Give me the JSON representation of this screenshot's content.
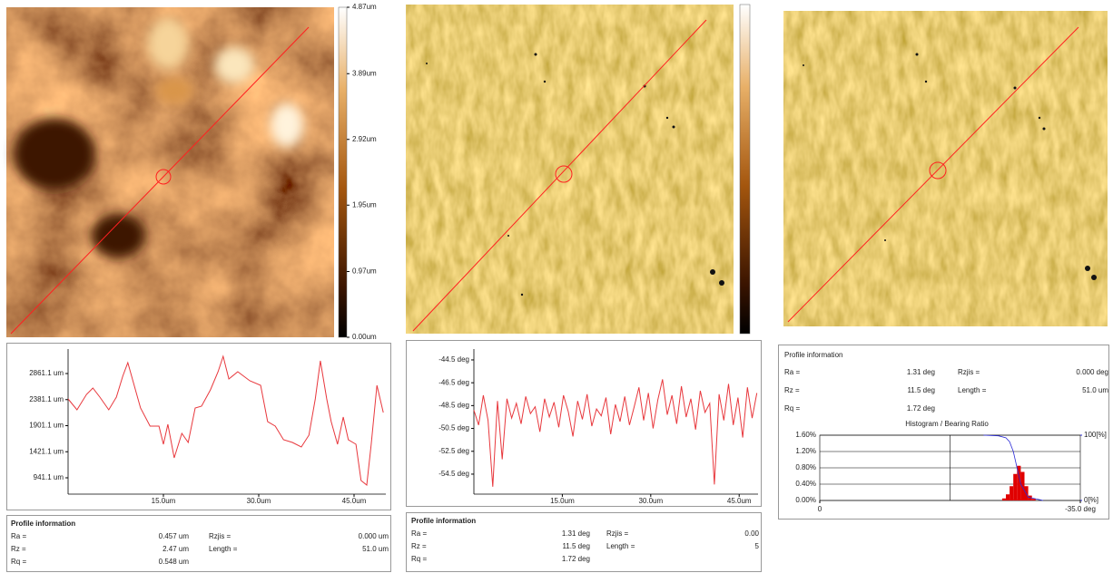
{
  "chart_data": [
    {
      "type": "line",
      "color": "#e8383d",
      "x": [
        0,
        1.4,
        2.9,
        3.9,
        5,
        6.4,
        7.6,
        8.6,
        9.4,
        10.4,
        11.4,
        12.9,
        14.3,
        15,
        15.7,
        16.7,
        17.9,
        18.9,
        20,
        21,
        22.4,
        23.6,
        24.4,
        25.3,
        26.7,
        28.6,
        30.3,
        31.4,
        32.6,
        33.9,
        35.3,
        36.7,
        37.9,
        38.9,
        39.7,
        40.7,
        41.4,
        42.4,
        43.3,
        44.1,
        45.3,
        46.1,
        47,
        47.7,
        48.6,
        49.6
      ],
      "values": [
        2393.7,
        2193.3,
        2477.1,
        2594,
        2427.1,
        2193.3,
        2427.1,
        2811.1,
        3061.5,
        2644.1,
        2226.7,
        1892.8,
        1892.8,
        1558.9,
        1926.1,
        1308.4,
        1759.2,
        1592.2,
        2226.7,
        2260.1,
        2560.6,
        2894.5,
        3178.4,
        2761,
        2894.5,
        2727.6,
        2644.1,
        1976.3,
        1892.8,
        1642.3,
        1592.2,
        1508.8,
        1725.8,
        2393.7,
        3094.9,
        2393.7,
        1976.3,
        1558.9,
        2059.7,
        1642.3,
        1558.9,
        891,
        807.5,
        1558.9,
        2644.1,
        2143.2
      ],
      "xlim": [
        0,
        50
      ],
      "ylim": [
        640.6,
        3312
      ],
      "xticks": [
        {
          "value": 15,
          "label": "15.0um"
        },
        {
          "value": 30,
          "label": "30.0um"
        },
        {
          "value": 45,
          "label": "45.0um"
        }
      ],
      "yticks": [
        {
          "value": 2861.1,
          "label": "2861.1 um"
        },
        {
          "value": 2381.1,
          "label": "2381.1 um"
        },
        {
          "value": 1901.1,
          "label": "1901.1 um"
        },
        {
          "value": 1421.1,
          "label": "1421.1 um"
        },
        {
          "value": 941.1,
          "label": "941.1 um"
        }
      ]
    },
    {
      "type": "line",
      "color": "#e8383d",
      "x": [
        0,
        0.8,
        1.6,
        2.4,
        3.2,
        4,
        4.8,
        5.6,
        6.4,
        7.2,
        8,
        8.8,
        9.6,
        10.4,
        11.2,
        12,
        12.8,
        13.6,
        14.4,
        15.2,
        16,
        16.8,
        17.6,
        18.4,
        19.2,
        20,
        20.8,
        21.6,
        22.4,
        23.2,
        24,
        24.8,
        25.6,
        26.4,
        27.2,
        28,
        28.8,
        29.6,
        30.4,
        31.2,
        32,
        32.8,
        33.6,
        34.4,
        35.2,
        36,
        36.8,
        37.6,
        38.4,
        39.2,
        40,
        40.8,
        41.6,
        42.4,
        43.2,
        44,
        44.8,
        45.6,
        46.4,
        47.2,
        48
      ],
      "values": [
        -48.9,
        -50.2,
        -47.6,
        -49.8,
        -55.6,
        -48.1,
        -53.2,
        -47.9,
        -49.6,
        -48.3,
        -50.1,
        -47.7,
        -49.2,
        -48.6,
        -50.8,
        -47.9,
        -49.5,
        -48.2,
        -50.4,
        -47.6,
        -49.0,
        -51.2,
        -48.1,
        -49.7,
        -47.5,
        -50.3,
        -48.8,
        -49.4,
        -47.8,
        -51.0,
        -48.4,
        -49.9,
        -47.7,
        -50.2,
        -48.6,
        -46.9,
        -49.8,
        -47.4,
        -50.5,
        -48.0,
        -46.2,
        -49.3,
        -47.6,
        -50.1,
        -46.8,
        -49.5,
        -47.9,
        -50.6,
        -47.2,
        -49.1,
        -48.3,
        -55.4,
        -47.5,
        -49.8,
        -46.6,
        -50.2,
        -47.8,
        -51.3,
        -46.9,
        -49.6,
        -47.4
      ],
      "xlim": [
        0,
        48.2
      ],
      "ylim": [
        -56.25,
        -43.55
      ],
      "xticks": [
        {
          "value": 15,
          "label": "15.0um"
        },
        {
          "value": 30,
          "label": "30.0um"
        },
        {
          "value": 45,
          "label": "45.0um"
        }
      ],
      "yticks": [
        {
          "value": -44.5,
          "label": "-44.5 deg"
        },
        {
          "value": -46.5,
          "label": "-46.5 deg"
        },
        {
          "value": -48.5,
          "label": "-48.5 deg"
        },
        {
          "value": -50.5,
          "label": "-50.5 deg"
        },
        {
          "value": -52.5,
          "label": "-52.5 deg"
        },
        {
          "value": -54.5,
          "label": "-54.5 deg"
        }
      ]
    },
    {
      "type": "histogram",
      "title": "Histogram / Bearing Ratio",
      "color": "#e00000",
      "bins": [
        -24.5,
        -25,
        -25.5,
        -26,
        -26.5,
        -27,
        -27.5,
        -28,
        -28.5,
        -29
      ],
      "values": [
        0.05,
        0.15,
        0.35,
        0.65,
        0.85,
        0.7,
        0.35,
        0.12,
        0.04
      ],
      "xlim": [
        0,
        -35
      ],
      "ylim": [
        0,
        1.6
      ],
      "y2lim": [
        0,
        100
      ],
      "xticks": [
        0,
        {
          "value": -35,
          "label": "-35.0 deg"
        }
      ],
      "yticks": [
        {
          "value": 1.6,
          "label": "1.60%"
        },
        {
          "value": 1.2,
          "label": "1.20%"
        },
        {
          "value": 0.8,
          "label": "0.80%"
        },
        {
          "value": 0.4,
          "label": "0.40%"
        },
        {
          "value": 0,
          "label": "0.00%"
        }
      ],
      "y2ticks": [
        {
          "value": 100,
          "label": "100[%]"
        },
        {
          "value": 0,
          "label": "0[%]"
        }
      ],
      "bearing_ratio": {
        "axis": "y2",
        "color": "#2b2bd6",
        "x": [
          -22,
          -24,
          -25,
          -25.5,
          -26,
          -26.5,
          -27,
          -28,
          -30
        ],
        "values": [
          100,
          99,
          96,
          90,
          75,
          50,
          25,
          5,
          0
        ]
      }
    }
  ],
  "colorbar": {
    "lim": [
      0,
      4.87
    ],
    "ticks": [
      {
        "value": 4.87,
        "label": "4.87um"
      },
      {
        "value": 3.89,
        "label": "3.89um"
      },
      {
        "value": 2.92,
        "label": "2.92um"
      },
      {
        "value": 1.95,
        "label": "1.95um"
      },
      {
        "value": 0.97,
        "label": "0.97um"
      },
      {
        "value": 0,
        "label": "0.00um"
      }
    ]
  },
  "profile_info": [
    {
      "title": "Profile information",
      "rows": [
        [
          "Ra =",
          "0.457 um",
          "Rzjis =",
          "0.000 um"
        ],
        [
          "Rz =",
          "2.47 um",
          "Length =",
          "51.0 um"
        ],
        [
          "Rq =",
          "0.548 um"
        ]
      ]
    },
    {
      "title": "Profile information",
      "rows": [
        [
          "Ra =",
          "1.31 deg",
          "Rzjis =",
          "0.00"
        ],
        [
          "Rz =",
          "11.5 deg",
          "Length =",
          "5"
        ],
        [
          "Rq =",
          "1.72 deg"
        ]
      ]
    },
    {
      "title": "Profile information",
      "rows": [
        [
          "Ra =",
          "1.31 deg",
          "Rzjis =",
          "0.000 deg"
        ],
        [
          "Rz =",
          "11.5 deg",
          "Length =",
          "51.0 um"
        ],
        [
          "Rq =",
          "1.72 deg"
        ]
      ]
    }
  ]
}
